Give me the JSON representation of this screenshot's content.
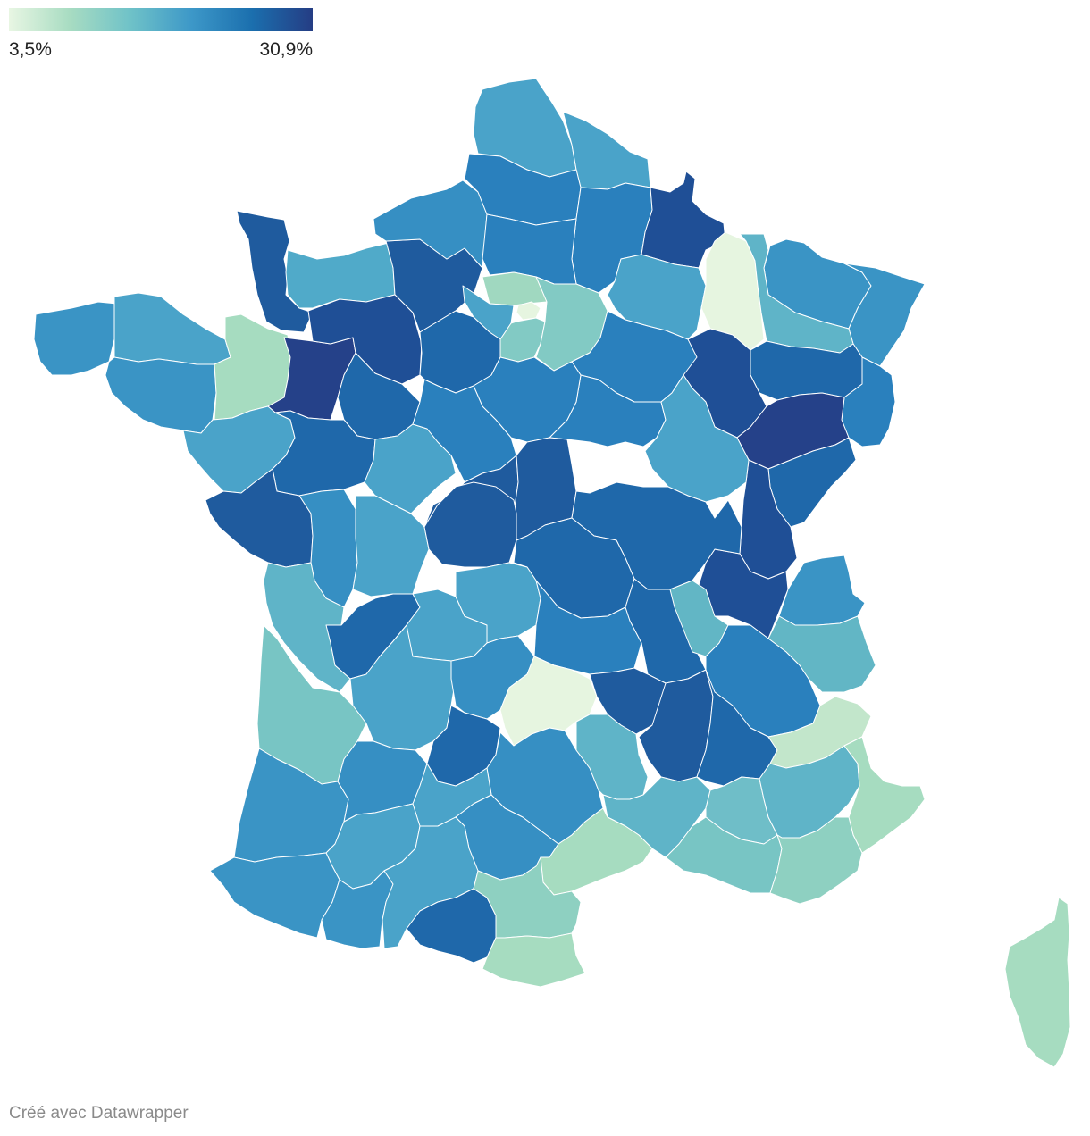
{
  "legend": {
    "min_label": "3,5%",
    "max_label": "30,9%",
    "min_value": 3.5,
    "max_value": 30.9,
    "gradient_colors": [
      "#e8f6e3",
      "#a8dcc2",
      "#6fc2c8",
      "#3d98c8",
      "#1b6fae",
      "#253d84"
    ]
  },
  "credit": "Créé avec Datawrapper",
  "regions": [
    {
      "id": "manche",
      "color": "#1f5b9e"
    },
    {
      "id": "calvados-orne",
      "color": "#50aac9"
    },
    {
      "id": "eure",
      "color": "#1f5b9e"
    },
    {
      "id": "seine-maritime",
      "color": "#368fc3"
    },
    {
      "id": "nord",
      "color": "#4aa3c9"
    },
    {
      "id": "pas-de-calais-east",
      "color": "#4aa3c9"
    },
    {
      "id": "somme",
      "color": "#2a80bd"
    },
    {
      "id": "aisne",
      "color": "#2a80bd"
    },
    {
      "id": "ardennes",
      "color": "#1f4f96"
    },
    {
      "id": "marne",
      "color": "#4aa3c9"
    },
    {
      "id": "meuse",
      "color": "#e6f5e0"
    },
    {
      "id": "moselle",
      "color": "#3a94c5"
    },
    {
      "id": "bas-rhin",
      "color": "#3a94c5"
    },
    {
      "id": "meurthe-et-moselle",
      "color": "#5fb4c8"
    },
    {
      "id": "vosges",
      "color": "#1f68aa"
    },
    {
      "id": "haut-rhin",
      "color": "#2a80bd"
    },
    {
      "id": "haute-marne",
      "color": "#1f4f96"
    },
    {
      "id": "haute-saone",
      "color": "#254189"
    },
    {
      "id": "doubs",
      "color": "#1f68aa"
    },
    {
      "id": "jura",
      "color": "#1f4f96"
    },
    {
      "id": "ain",
      "color": "#1f4f96"
    },
    {
      "id": "haute-savoie",
      "color": "#3a94c5"
    },
    {
      "id": "savoie",
      "color": "#62b6c5"
    },
    {
      "id": "oise",
      "color": "#2a80bd"
    },
    {
      "id": "val-d-oise",
      "color": "#a0d8c0"
    },
    {
      "id": "paris",
      "color": "#e6f5e0"
    },
    {
      "id": "yvelines",
      "color": "#4aa3c9"
    },
    {
      "id": "essonne",
      "color": "#82cac4"
    },
    {
      "id": "seine-et-marne",
      "color": "#82cac4"
    },
    {
      "id": "aube",
      "color": "#2a80bd"
    },
    {
      "id": "yonne",
      "color": "#2a80bd"
    },
    {
      "id": "cote-d-or",
      "color": "#4aa3c9"
    },
    {
      "id": "finistere",
      "color": "#3a94c5"
    },
    {
      "id": "cotes-d-armor",
      "color": "#4aa3c9"
    },
    {
      "id": "morbihan",
      "color": "#3a94c5"
    },
    {
      "id": "ille-et-vilaine",
      "color": "#a6dcc0"
    },
    {
      "id": "mayenne",
      "color": "#254189"
    },
    {
      "id": "sarthe",
      "color": "#1f68aa"
    },
    {
      "id": "orne-east",
      "color": "#1f4f96"
    },
    {
      "id": "eure-et-loir",
      "color": "#1f68aa"
    },
    {
      "id": "loiret",
      "color": "#2a80bd"
    },
    {
      "id": "loire-atlantique",
      "color": "#4aa3c9"
    },
    {
      "id": "maine-et-loire",
      "color": "#1f68aa"
    },
    {
      "id": "indre-et-loire",
      "color": "#4aa3c9"
    },
    {
      "id": "loir-et-cher",
      "color": "#2a80bd"
    },
    {
      "id": "cher",
      "color": "#1f5b9e"
    },
    {
      "id": "nievre",
      "color": "#1f5b9e"
    },
    {
      "id": "saone-et-loire",
      "color": "#1f68aa"
    },
    {
      "id": "vendee",
      "color": "#1f5b9e"
    },
    {
      "id": "deux-sevres",
      "color": "#368fc3"
    },
    {
      "id": "vienne",
      "color": "#4aa3c9"
    },
    {
      "id": "indre",
      "color": "#1f5b9e"
    },
    {
      "id": "allier",
      "color": "#1f68aa"
    },
    {
      "id": "charente-maritime",
      "color": "#5fb4c8"
    },
    {
      "id": "charente",
      "color": "#1f68aa"
    },
    {
      "id": "haute-vienne",
      "color": "#4aa3c9"
    },
    {
      "id": "creuse",
      "color": "#4aa3c9"
    },
    {
      "id": "puy-de-dome",
      "color": "#2a80bd"
    },
    {
      "id": "loire",
      "color": "#1f68aa"
    },
    {
      "id": "rhone",
      "color": "#62b6c5"
    },
    {
      "id": "isere",
      "color": "#2a80bd"
    },
    {
      "id": "gironde",
      "color": "#78c5c4"
    },
    {
      "id": "dordogne",
      "color": "#4aa3c9"
    },
    {
      "id": "correze",
      "color": "#368fc3"
    },
    {
      "id": "cantal",
      "color": "#e6f5e0"
    },
    {
      "id": "haute-loire",
      "color": "#1f5b9e"
    },
    {
      "id": "ardeche",
      "color": "#1f5b9e"
    },
    {
      "id": "drome",
      "color": "#1f68aa"
    },
    {
      "id": "hautes-alpes",
      "color": "#c2e6cb"
    },
    {
      "id": "lot",
      "color": "#1f68aa"
    },
    {
      "id": "aveyron",
      "color": "#368fc3"
    },
    {
      "id": "lozere",
      "color": "#5fb4c8"
    },
    {
      "id": "gard",
      "color": "#5fb4c8"
    },
    {
      "id": "vaucluse",
      "color": "#6fbec8"
    },
    {
      "id": "alpes-de-haute-provence",
      "color": "#5fb4c8"
    },
    {
      "id": "alpes-maritimes",
      "color": "#a6dcc0"
    },
    {
      "id": "landes",
      "color": "#3a94c5"
    },
    {
      "id": "lot-et-garonne",
      "color": "#368fc3"
    },
    {
      "id": "tarn-et-garonne",
      "color": "#4aa3c9"
    },
    {
      "id": "tarn",
      "color": "#368fc3"
    },
    {
      "id": "herault",
      "color": "#a6dcc0"
    },
    {
      "id": "bouches-du-rhone",
      "color": "#78c5c4"
    },
    {
      "id": "var",
      "color": "#8ed0c1"
    },
    {
      "id": "gers",
      "color": "#4aa3c9"
    },
    {
      "id": "pyrenees-atlantiques",
      "color": "#3a94c5"
    },
    {
      "id": "hautes-pyrenees",
      "color": "#3a94c5"
    },
    {
      "id": "haute-garonne",
      "color": "#4aa3c9"
    },
    {
      "id": "ariege",
      "color": "#1f68aa"
    },
    {
      "id": "aude",
      "color": "#8ed0c1"
    },
    {
      "id": "pyrenees-orientales",
      "color": "#a6dcc0"
    },
    {
      "id": "corse",
      "color": "#a6dcc0"
    }
  ]
}
